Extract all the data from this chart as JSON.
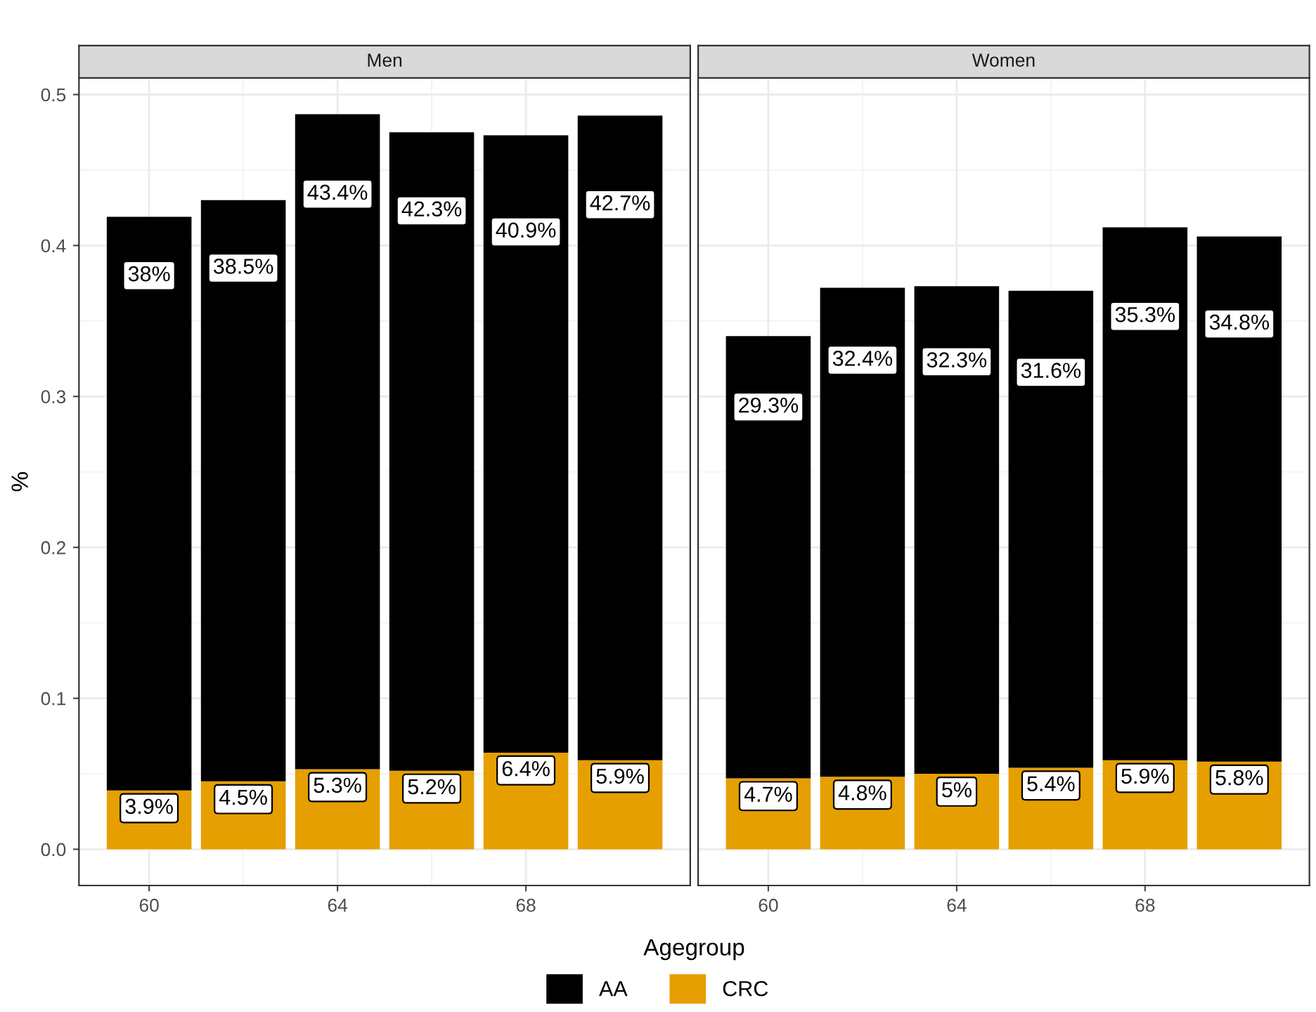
{
  "chart_data": [
    {
      "type": "bar",
      "stacked": true,
      "title": "Men",
      "xlabel": "Agegroup",
      "ylabel": "%",
      "x": [
        60,
        62,
        64,
        66,
        68,
        70
      ],
      "xlim": [
        58.51,
        71.49
      ],
      "xticks": [
        60,
        64,
        68
      ],
      "ylim": [
        -0.024,
        0.511
      ],
      "yticks": [
        {
          "value": 0,
          "label": "0.0"
        },
        0.1,
        0.2,
        0.3,
        0.4,
        0.5
      ],
      "grid": true,
      "legend": "bottom",
      "series": [
        {
          "name": "CRC",
          "color": "#e69f00",
          "values": [
            0.039,
            0.045,
            0.053,
            0.052,
            0.064,
            0.059
          ],
          "value_labels": [
            "3.9%",
            "4.5%",
            "5.3%",
            "5.2%",
            "6.4%",
            "5.9%"
          ]
        },
        {
          "name": "AA",
          "color": "#000000",
          "values": [
            0.38,
            0.385,
            0.434,
            0.423,
            0.409,
            0.427
          ],
          "value_labels": [
            "38%",
            "38.5%",
            "43.4%",
            "42.3%",
            "40.9%",
            "42.7%"
          ]
        }
      ]
    },
    {
      "type": "bar",
      "stacked": true,
      "title": "Women",
      "x": [
        60,
        62,
        64,
        66,
        68,
        70
      ],
      "xlim": [
        58.51,
        71.49
      ],
      "xticks": [
        60,
        64,
        68
      ],
      "ylim": [
        -0.024,
        0.511
      ],
      "yticks": [
        {
          "value": 0,
          "label": null
        },
        {
          "value": 0.1,
          "label": null
        },
        {
          "value": 0.2,
          "label": null
        },
        {
          "value": 0.3,
          "label": null
        },
        {
          "value": 0.4,
          "label": null
        },
        {
          "value": 0.5,
          "label": null
        }
      ],
      "grid": true,
      "tick_labels": "x",
      "series": [
        {
          "color": "#e69f00",
          "values": [
            0.047,
            0.048,
            0.05,
            0.054,
            0.059,
            0.058
          ],
          "value_labels": [
            "4.7%",
            "4.8%",
            "5%",
            "5.4%",
            "5.9%",
            "5.8%"
          ]
        },
        {
          "color": "#000000",
          "values": [
            0.293,
            0.324,
            0.323,
            0.316,
            0.353,
            0.348
          ],
          "value_labels": [
            "29.3%",
            "32.4%",
            "32.3%",
            "31.6%",
            "35.3%",
            "34.8%"
          ]
        }
      ]
    }
  ]
}
